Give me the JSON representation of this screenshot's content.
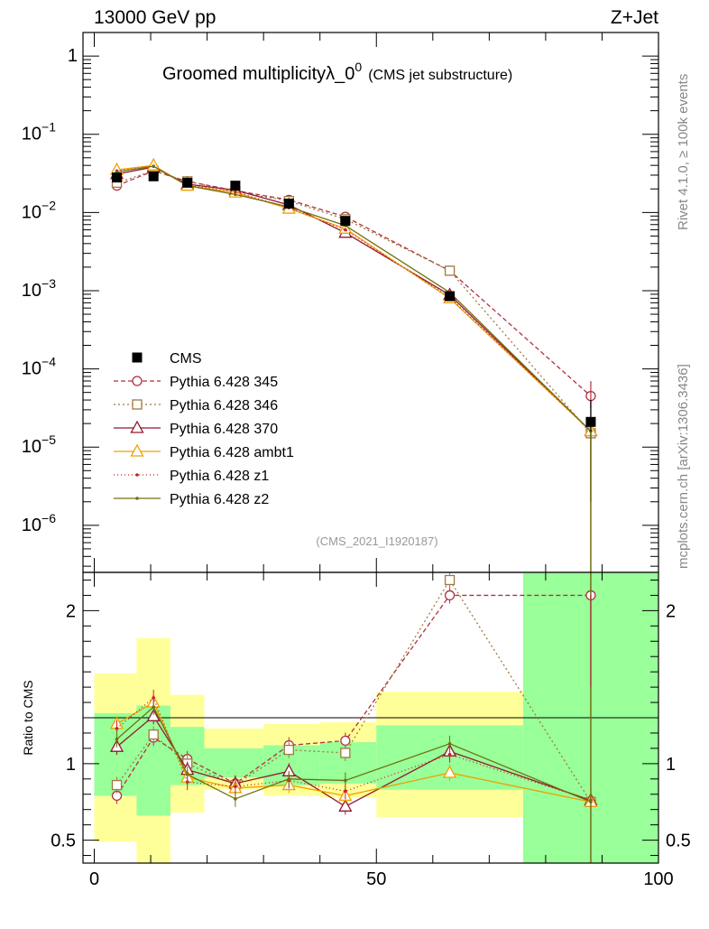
{
  "header": {
    "energy_label": "13000 GeV pp",
    "process_label": "Z+Jet"
  },
  "side_labels": {
    "rivet": "Rivet 4.1.0, ≥ 100k events",
    "mcplots": "mcplots.cern.ch [arXiv:1306.3436]"
  },
  "chart_data": [
    {
      "panel": "main",
      "type": "line",
      "title": "Groomed multiplicityλ_0",
      "title_sup": "0",
      "title_suffix": "(CMS jet substructure)",
      "analysis_tag": "(CMS_2021_I1920187)",
      "yscale": "log",
      "ylim": [
        2.5e-07,
        2.0
      ],
      "xlim": [
        -2,
        100
      ],
      "y_ticks": [
        {
          "value": 1,
          "label": "1"
        },
        {
          "value": 0.1,
          "label": "10",
          "sup": "−1"
        },
        {
          "value": 0.01,
          "label": "10",
          "sup": "−2"
        },
        {
          "value": 0.001,
          "label": "10",
          "sup": "−3"
        },
        {
          "value": 0.0001,
          "label": "10",
          "sup": "−4"
        },
        {
          "value": 1e-05,
          "label": "10",
          "sup": "−5"
        },
        {
          "value": 1e-06,
          "label": "10",
          "sup": "−6"
        }
      ],
      "x": [
        4,
        10.5,
        16.5,
        25,
        34.5,
        44.5,
        63,
        88
      ],
      "data": {
        "name": "CMS",
        "values": [
          0.028,
          0.029,
          0.024,
          0.022,
          0.013,
          0.0078,
          0.00085,
          2.1e-05
        ],
        "errors": [
          0.002,
          0.002,
          0.0015,
          0.0012,
          0.0008,
          0.0005,
          8e-05,
          1.9e-05
        ]
      },
      "series": [
        {
          "name": "Pythia 6.428 345",
          "color": "#b03040",
          "dash": "5,3",
          "marker": "circle",
          "values": [
            0.022,
            0.034,
            0.025,
            0.019,
            0.0145,
            0.0088,
            0.0018,
            4.5e-05
          ]
        },
        {
          "name": "Pythia 6.428 346",
          "color": "#a07840",
          "dash": "2,3",
          "marker": "square",
          "values": [
            0.024,
            0.034,
            0.025,
            0.0185,
            0.014,
            0.0082,
            0.0018,
            1.5e-05
          ]
        },
        {
          "name": "Pythia 6.428 370",
          "color": "#901830",
          "dash": "",
          "marker": "triangle",
          "values": [
            0.031,
            0.038,
            0.023,
            0.0193,
            0.0125,
            0.0055,
            0.00088,
            1.6e-05
          ]
        },
        {
          "name": "Pythia 6.428 ambt1",
          "color": "#f0a000",
          "dash": "",
          "marker": "triangle",
          "values": [
            0.035,
            0.04,
            0.022,
            0.018,
            0.0112,
            0.0062,
            0.0008,
            1.6e-05
          ]
        },
        {
          "name": "Pythia 6.428 z1",
          "color": "#d02020",
          "dash": "1,3",
          "marker": "dot",
          "values": [
            0.034,
            0.039,
            0.0225,
            0.0183,
            0.0115,
            0.006,
            0.00082,
            1.6e-05
          ]
        },
        {
          "name": "Pythia 6.428 z2",
          "color": "#707010",
          "dash": "",
          "marker": "dot",
          "values": [
            0.033,
            0.039,
            0.022,
            0.017,
            0.0118,
            0.0068,
            0.00095,
            1.6e-05
          ]
        }
      ]
    },
    {
      "panel": "ratio",
      "type": "line",
      "ylabel": "Ratio to CMS",
      "ylim": [
        0.35,
        2.25
      ],
      "xlim": [
        -2,
        100
      ],
      "y_ticks": [
        {
          "value": 0.5,
          "label": "0.5"
        },
        {
          "value": 1,
          "label": "1"
        },
        {
          "value": 2,
          "label": "2"
        }
      ],
      "x_ticks": [
        {
          "value": 0,
          "label": "0"
        },
        {
          "value": 50,
          "label": "50"
        },
        {
          "value": 100,
          "label": "100"
        }
      ],
      "bins": [
        {
          "lo": 0,
          "hi": 7.5,
          "stat": [
            0.79,
            1.33
          ],
          "total": [
            0.49,
            1.59
          ]
        },
        {
          "lo": 7.5,
          "hi": 13.5,
          "stat": [
            0.66,
            1.38
          ],
          "total": [
            0.35,
            1.82
          ]
        },
        {
          "lo": 13.5,
          "hi": 19.5,
          "stat": [
            0.86,
            1.24
          ],
          "total": [
            0.68,
            1.45
          ]
        },
        {
          "lo": 19.5,
          "hi": 30,
          "stat": [
            0.91,
            1.1
          ],
          "total": [
            0.83,
            1.23
          ]
        },
        {
          "lo": 30,
          "hi": 40,
          "stat": [
            0.86,
            1.12
          ],
          "total": [
            0.79,
            1.26
          ]
        },
        {
          "lo": 40,
          "hi": 50,
          "stat": [
            0.87,
            1.14
          ],
          "total": [
            0.78,
            1.27
          ]
        },
        {
          "lo": 50,
          "hi": 76,
          "stat": [
            0.83,
            1.25
          ],
          "total": [
            0.65,
            1.47
          ]
        },
        {
          "lo": 76,
          "hi": 100,
          "stat": [
            0.35,
            2.25
          ],
          "total": [
            0.35,
            2.25
          ]
        }
      ],
      "x": [
        4,
        10.5,
        16.5,
        25,
        34.5,
        44.5,
        63,
        88
      ],
      "series": [
        {
          "name": "Pythia 6.428 345",
          "color": "#b03040",
          "dash": "5,3",
          "marker": "circle",
          "values": [
            0.79,
            1.17,
            1.03,
            0.87,
            1.12,
            1.15,
            2.1,
            2.1
          ]
        },
        {
          "name": "Pythia 6.428 346",
          "color": "#a07840",
          "dash": "2,3",
          "marker": "square",
          "values": [
            0.86,
            1.19,
            1.0,
            0.86,
            1.09,
            1.07,
            2.2,
            0.75
          ]
        },
        {
          "name": "Pythia 6.428 370",
          "color": "#901830",
          "dash": "",
          "marker": "triangle",
          "values": [
            1.11,
            1.31,
            0.96,
            0.87,
            0.95,
            0.72,
            1.08,
            0.76
          ]
        },
        {
          "name": "Pythia 6.428 ambt1",
          "color": "#f0a000",
          "dash": "",
          "marker": "triangle",
          "values": [
            1.26,
            1.4,
            0.91,
            0.84,
            0.86,
            0.79,
            0.94,
            0.75
          ]
        },
        {
          "name": "Pythia 6.428 z1",
          "color": "#d02020",
          "dash": "1,3",
          "marker": "dot",
          "values": [
            1.23,
            1.43,
            0.88,
            0.85,
            0.89,
            0.82,
            1.06,
            0.76
          ]
        },
        {
          "name": "Pythia 6.428 z2",
          "color": "#707010",
          "dash": "",
          "marker": "dot",
          "values": [
            1.16,
            1.37,
            0.93,
            0.77,
            0.9,
            0.89,
            1.13,
            0.75
          ]
        }
      ]
    }
  ]
}
